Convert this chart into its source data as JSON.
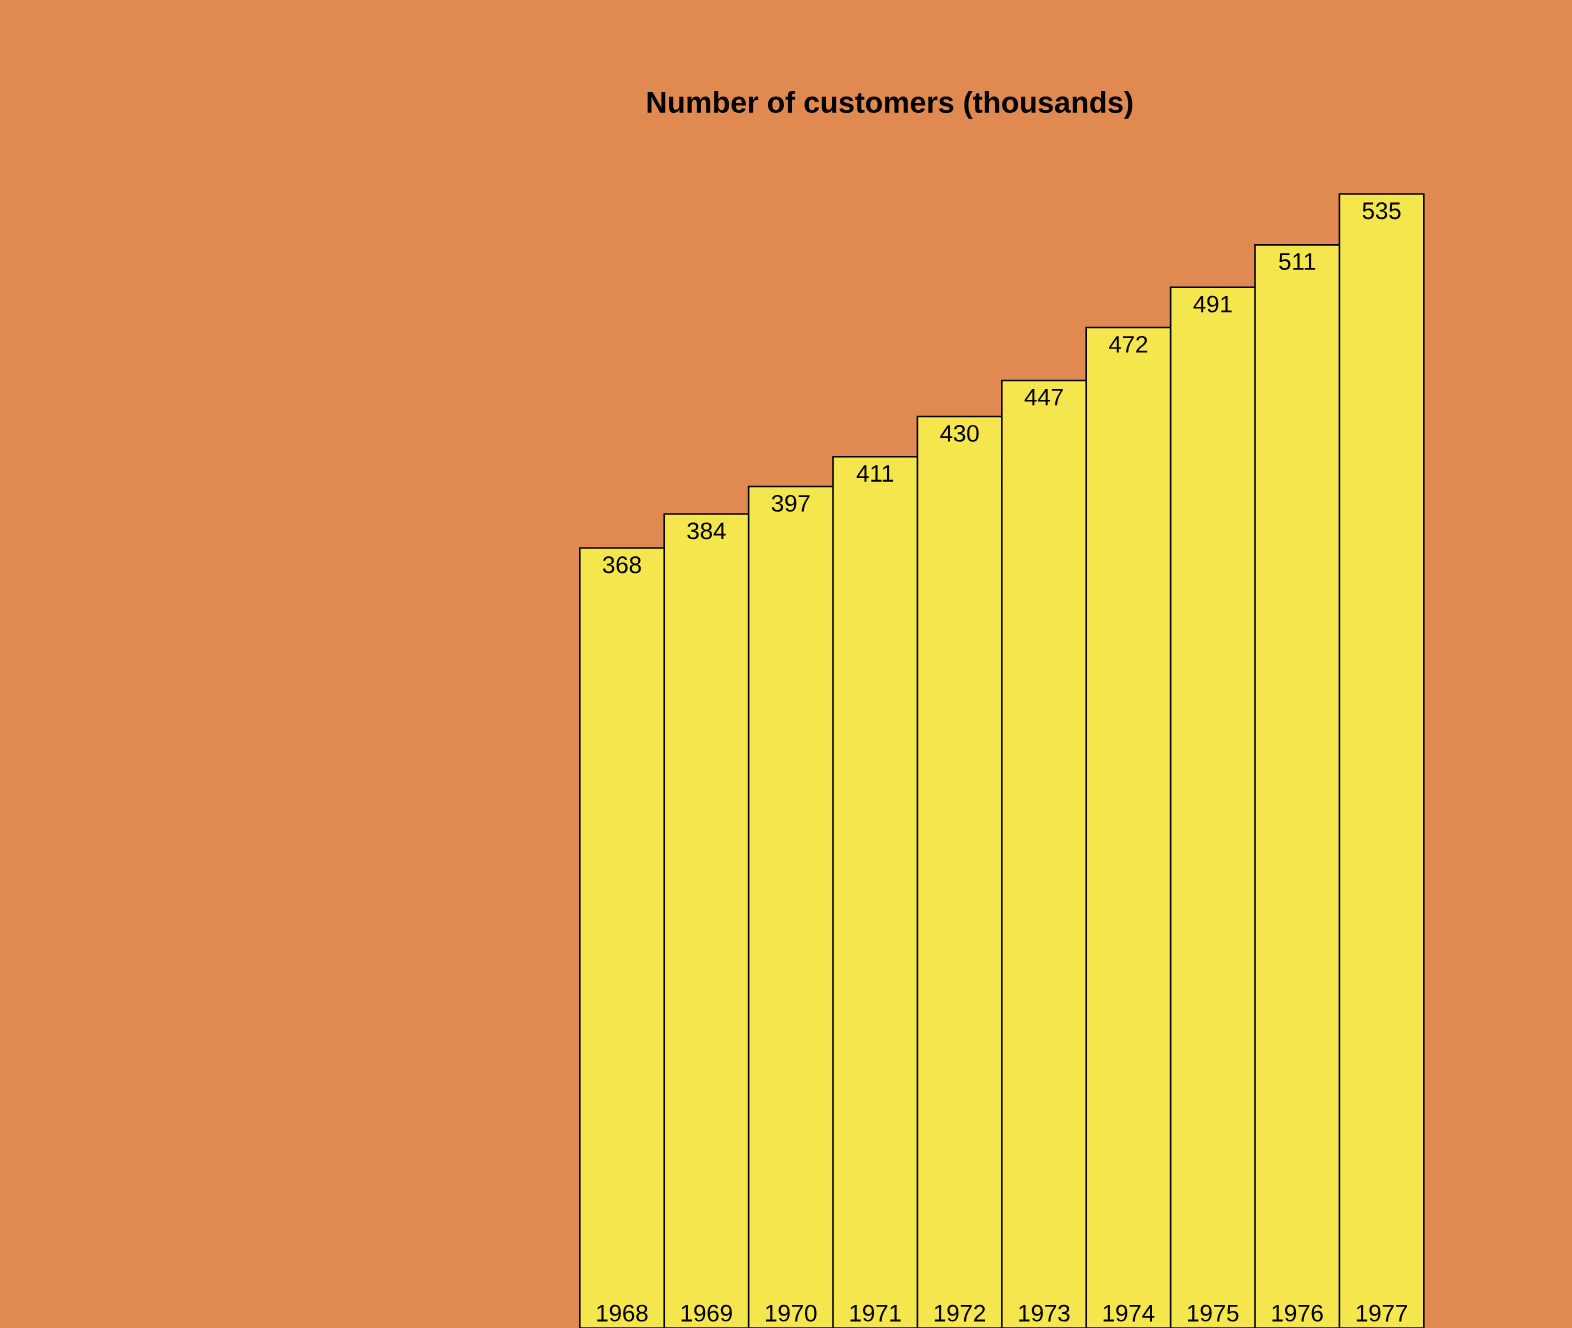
{
  "chart_data": {
    "type": "bar",
    "title": "Number of customers  (thousands)",
    "categories": [
      "1968",
      "1969",
      "1970",
      "1971",
      "1972",
      "1973",
      "1974",
      "1975",
      "1976",
      "1977"
    ],
    "values": [
      368,
      384,
      397,
      411,
      430,
      447,
      472,
      491,
      511,
      535
    ],
    "color": "#f4e64c",
    "data_labels": true
  }
}
